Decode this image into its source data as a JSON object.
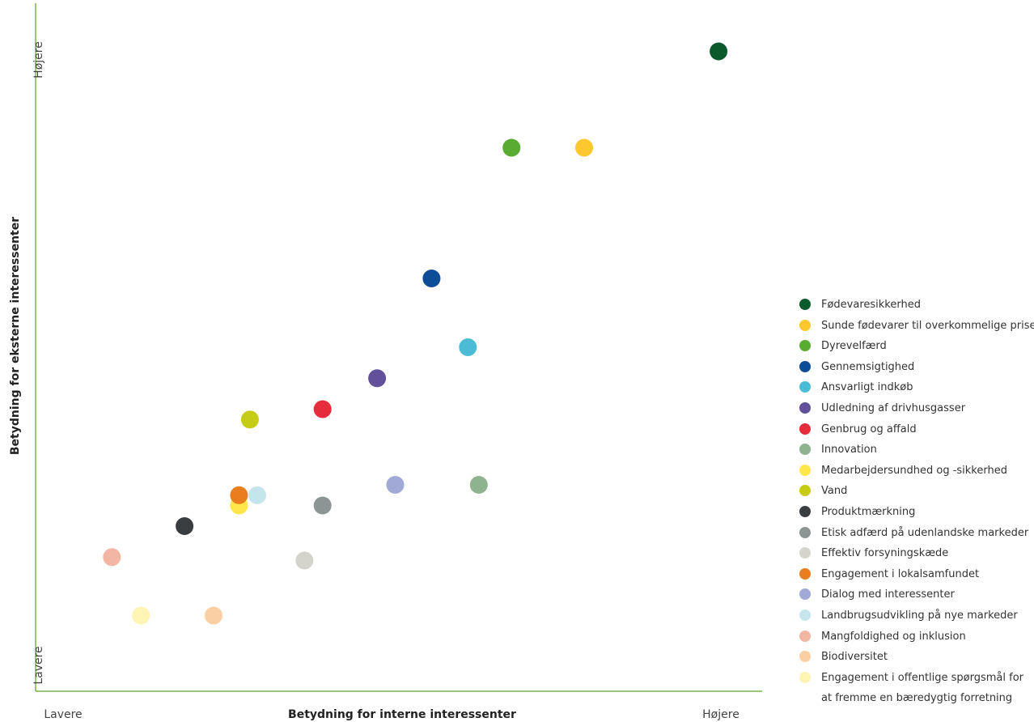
{
  "chart_data": {
    "type": "scatter",
    "xlabel": "Betydning for interne interessenter",
    "ylabel": "Betydning for eksterne interessenter",
    "x_low_label": "Lavere",
    "x_high_label": "Højere",
    "y_low_label": "Lavere",
    "y_high_label": "Højere",
    "xlim": [
      0,
      100
    ],
    "ylim": [
      0,
      100
    ],
    "grid": false,
    "legend_position": "right",
    "axis_color": "#7ab648",
    "series": [
      {
        "name": "Fødevaresikkerhed",
        "color": "#0a5a2c",
        "x": 94,
        "y": 93
      },
      {
        "name": "Sunde fødevarer til overkommelige priser",
        "color": "#fdc82f",
        "x": 75.5,
        "y": 79
      },
      {
        "name": "Dyrevelfærd",
        "color": "#5aab31",
        "x": 65.5,
        "y": 79
      },
      {
        "name": "Gennemsigtighed",
        "color": "#0d4c97",
        "x": 54.5,
        "y": 60
      },
      {
        "name": "Ansvarligt indkøb",
        "color": "#4cbcd4",
        "x": 59.5,
        "y": 50
      },
      {
        "name": "Udledning af drivhusgasser",
        "color": "#62509b",
        "x": 47,
        "y": 45.5
      },
      {
        "name": "Genbrug og affald",
        "color": "#e52d3b",
        "x": 39.5,
        "y": 41
      },
      {
        "name": "Innovation",
        "color": "#8fb38e",
        "x": 61,
        "y": 30
      },
      {
        "name": "Medarbejdersundhed og -sikkerhed",
        "color": "#ffe64a",
        "x": 28,
        "y": 27
      },
      {
        "name": "Vand",
        "color": "#c6cc14",
        "x": 29.5,
        "y": 39.5
      },
      {
        "name": "Produktmærkning",
        "color": "#3a3d40",
        "x": 20.5,
        "y": 24
      },
      {
        "name": "Etisk adfærd på udenlandske markeder",
        "color": "#8c9593",
        "x": 39.5,
        "y": 27
      },
      {
        "name": "Effektiv forsyningskæde",
        "color": "#d4d4cc",
        "x": 37,
        "y": 19
      },
      {
        "name": "Engagement i lokalsamfundet",
        "color": "#ea7d1d",
        "x": 28,
        "y": 28.5
      },
      {
        "name": "Dialog med interessenter",
        "color": "#a1aad6",
        "x": 49.5,
        "y": 30
      },
      {
        "name": "Landbrugsudvikling på nye markeder",
        "color": "#c5e5ed",
        "x": 30.5,
        "y": 28.5
      },
      {
        "name": "Mangfoldighed og inklusion",
        "color": "#f3b6a4",
        "x": 10.5,
        "y": 19.5
      },
      {
        "name": "Biodiversitet",
        "color": "#fbcfa4",
        "x": 24.5,
        "y": 11
      },
      {
        "name": "Engagement i offentlige spørgsmål for at fremme en bæredygtig forretning",
        "color": "#fff4b3",
        "x": 14.5,
        "y": 11
      }
    ]
  }
}
